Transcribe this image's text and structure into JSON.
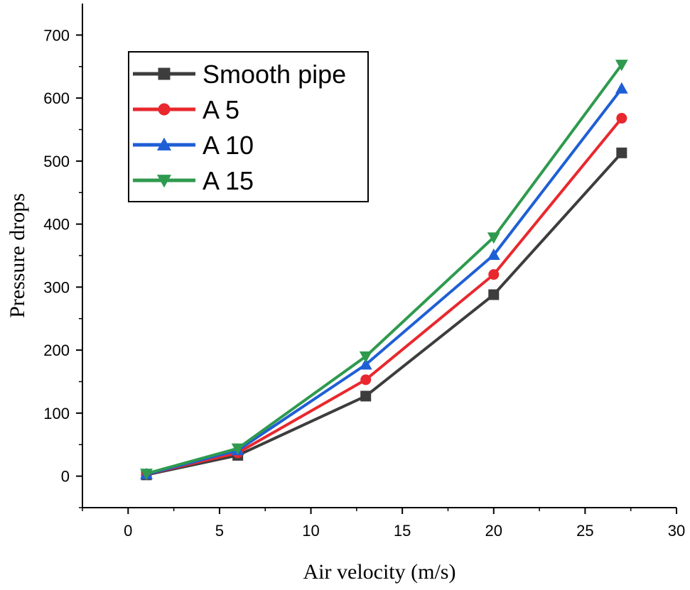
{
  "chart_data": {
    "type": "line",
    "title": "",
    "xlabel": "Air velocity (m/s)",
    "ylabel": "Pressure drops",
    "xlim": [
      -2.5,
      30
    ],
    "ylim": [
      -50,
      750
    ],
    "xticks": [
      0,
      5,
      10,
      15,
      20,
      25,
      30
    ],
    "yticks": [
      0,
      100,
      200,
      300,
      400,
      500,
      600,
      700
    ],
    "grid": false,
    "legend_position": "top-left",
    "x": [
      1,
      6,
      13,
      20,
      27
    ],
    "series": [
      {
        "name": "Smooth pipe",
        "color": "#3d3d3d",
        "marker": "square",
        "values": [
          2,
          33,
          127,
          288,
          513
        ]
      },
      {
        "name": "A 5",
        "color": "#e8282e",
        "marker": "circle",
        "values": [
          3,
          37,
          153,
          320,
          568
        ]
      },
      {
        "name": "A 10",
        "color": "#1f5fd6",
        "marker": "triangle-up",
        "values": [
          3,
          41,
          177,
          351,
          615
        ]
      },
      {
        "name": "A 15",
        "color": "#2e9a4e",
        "marker": "triangle-down",
        "values": [
          4,
          44,
          190,
          379,
          653
        ]
      }
    ]
  }
}
